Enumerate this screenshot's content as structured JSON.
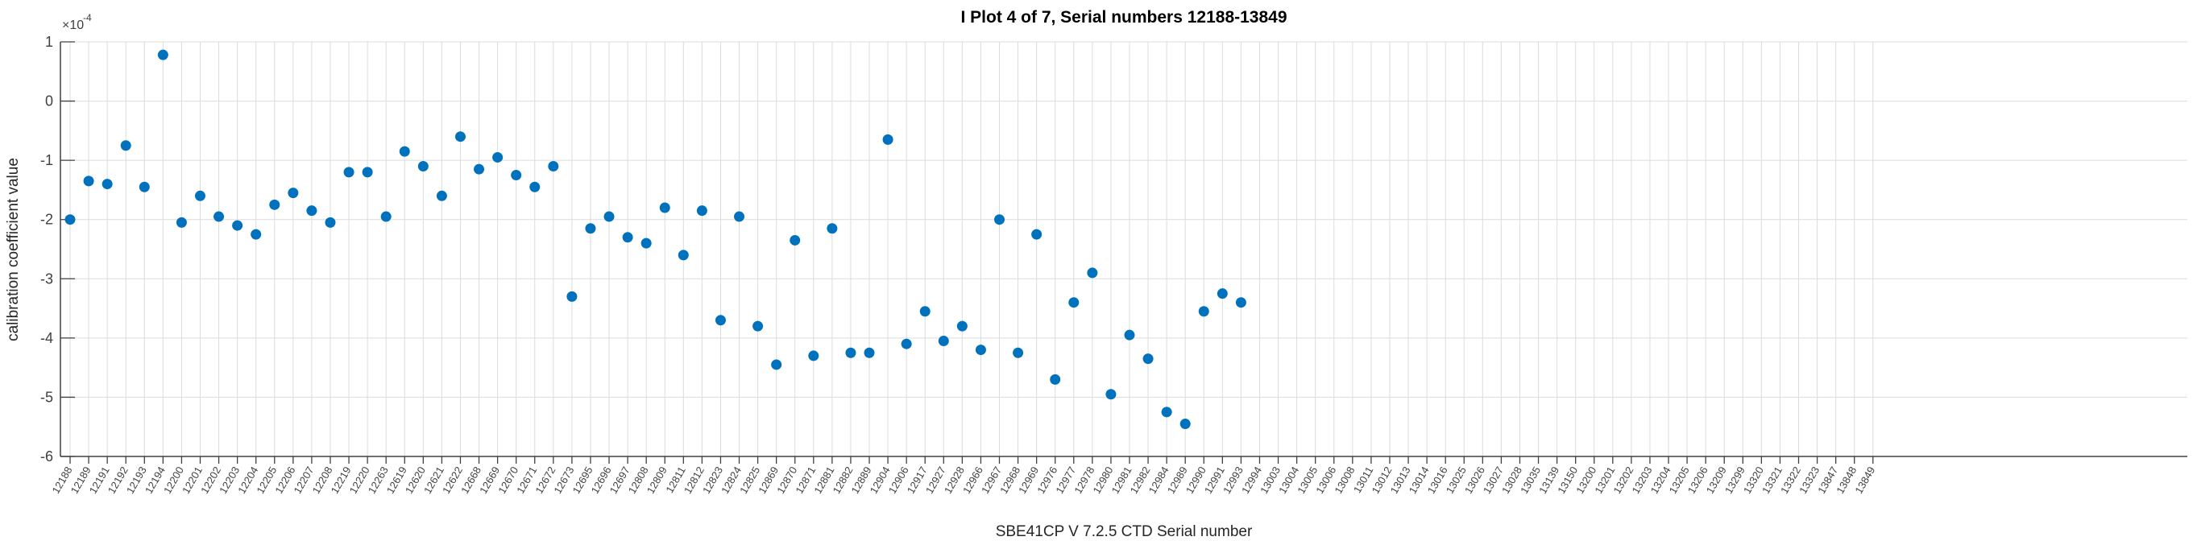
{
  "figure": {
    "title": "I Plot 4 of 7, Serial numbers 12188-13849"
  },
  "chart_data": {
    "type": "scatter",
    "title": "I Plot 4 of 7, Serial numbers 12188-13849",
    "xlabel": "SBE41CP V 7.2.5 CTD Serial number",
    "ylabel": "calibration coefficient value",
    "y_axis": {
      "offset_base": "×10",
      "offset_exp": "-4",
      "ticks": [
        1,
        0,
        -1,
        -2,
        -3,
        -4,
        -5,
        -6
      ],
      "ylim": [
        -6,
        1
      ],
      "unit_scale": "1e-4"
    },
    "grid": true,
    "legend_position": "none",
    "marker": "filled-circle",
    "marker_color": "#0072BD",
    "categories": [
      "12188",
      "12189",
      "12191",
      "12192",
      "12193",
      "12194",
      "12200",
      "12201",
      "12202",
      "12203",
      "12204",
      "12205",
      "12206",
      "12207",
      "12208",
      "12219",
      "12220",
      "12263",
      "12619",
      "12620",
      "12621",
      "12622",
      "12668",
      "12669",
      "12670",
      "12671",
      "12672",
      "12673",
      "12695",
      "12696",
      "12697",
      "12808",
      "12809",
      "12811",
      "12812",
      "12823",
      "12824",
      "12825",
      "12869",
      "12870",
      "12871",
      "12881",
      "12882",
      "12889",
      "12904",
      "12906",
      "12917",
      "12927",
      "12928",
      "12966",
      "12967",
      "12968",
      "12969",
      "12976",
      "12977",
      "12978",
      "12980",
      "12981",
      "12982",
      "12984",
      "12989",
      "12990",
      "12991",
      "12993",
      "12994",
      "13003",
      "13004",
      "13005",
      "13006",
      "13008",
      "13011",
      "13012",
      "13013",
      "13014",
      "13016",
      "13025",
      "13026",
      "13027",
      "13028",
      "13035",
      "13139",
      "13150",
      "13200",
      "13201",
      "13202",
      "13203",
      "13204",
      "13205",
      "13206",
      "13209",
      "13299",
      "13320",
      "13321",
      "13322",
      "13323",
      "13847",
      "13848",
      "13849"
    ],
    "values": [
      -2.0,
      -1.35,
      -1.4,
      -0.75,
      -1.45,
      0.78,
      -2.05,
      -1.6,
      -1.95,
      -2.1,
      -2.25,
      -1.75,
      -1.55,
      -1.85,
      -2.05,
      -1.2,
      -1.2,
      -1.95,
      -0.85,
      -1.1,
      -1.6,
      -0.6,
      -1.15,
      -0.95,
      -1.25,
      -1.45,
      -1.1,
      -3.3,
      -2.15,
      -1.95,
      -2.3,
      -2.4,
      -1.8,
      -2.6,
      -1.85,
      -3.7,
      -1.95,
      -3.8,
      -4.45,
      -2.35,
      -4.3,
      -2.15,
      -4.25,
      -4.25,
      -0.65,
      -4.1,
      -3.55,
      -4.05,
      -3.8,
      -4.2,
      -2.0,
      -4.25,
      -2.25,
      -4.7,
      -3.4,
      -2.9,
      -4.95,
      -3.95,
      -4.35,
      -5.25,
      -5.45,
      -3.55,
      -3.25,
      -3.4,
      null,
      null,
      null,
      null,
      null,
      null,
      null,
      null,
      null,
      null,
      null,
      null,
      null,
      null,
      null,
      null,
      null,
      null,
      null,
      null,
      null,
      null,
      null,
      null,
      null,
      null,
      null,
      null,
      null,
      null,
      null,
      null,
      null,
      null
    ]
  },
  "colors": {
    "marker": "#0072BD",
    "grid": "#DCDCDC",
    "axis": "#404040",
    "title": "#000000"
  }
}
